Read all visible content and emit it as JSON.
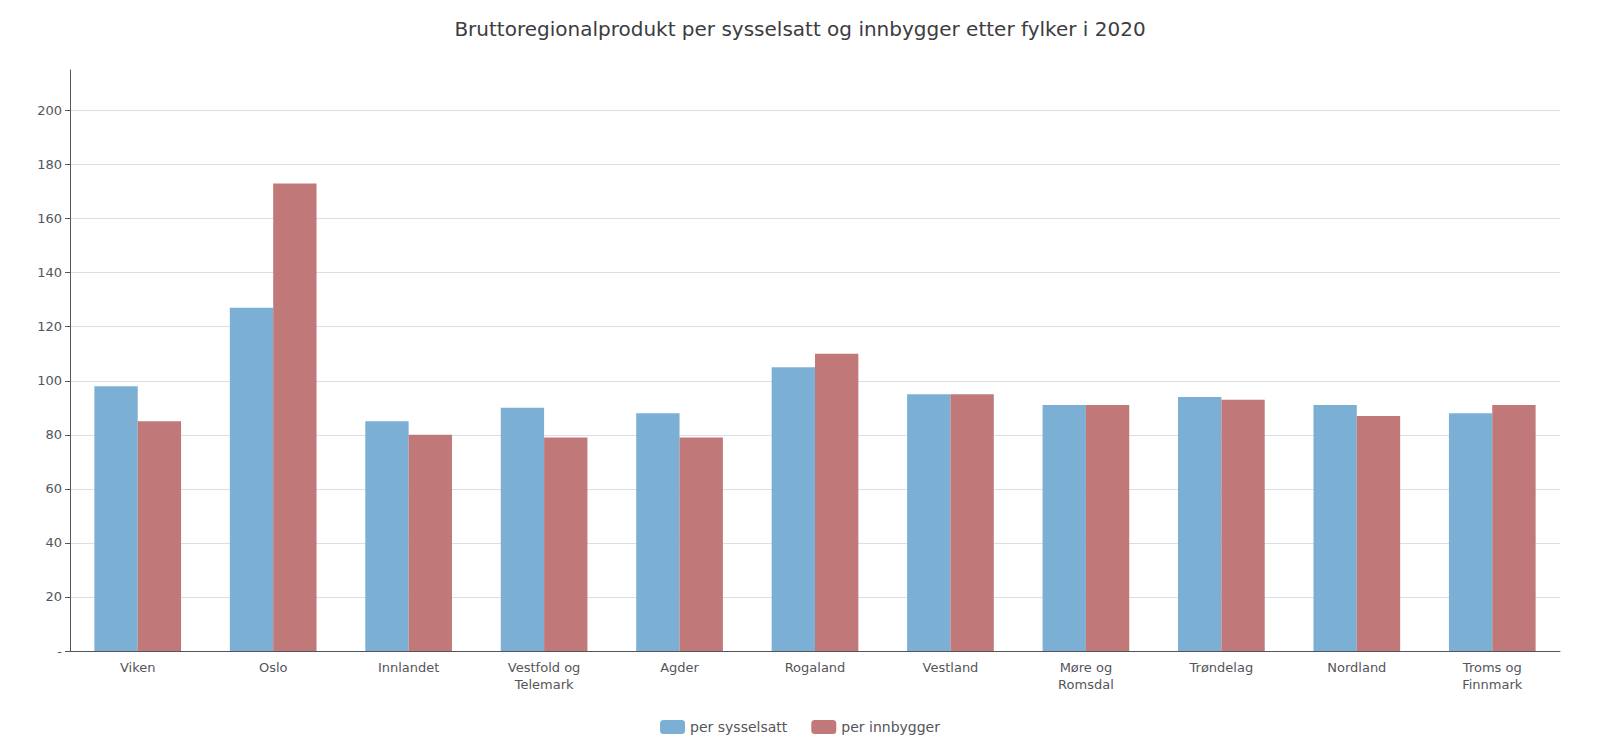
{
  "chart_data": {
    "type": "bar",
    "title": "Bruttoregionalprodukt per sysselsatt og innbygger etter fylker i 2020",
    "categories": [
      "Viken",
      "Oslo",
      "Innlandet",
      "Vestfold og\nTelemark",
      "Agder",
      "Rogaland",
      "Vestland",
      "Møre og\nRomsdal",
      "Trøndelag",
      "Nordland",
      "Troms og\nFinnmark"
    ],
    "series": [
      {
        "name": "per sysselsatt",
        "color": "#7BAFD4",
        "values": [
          98,
          127,
          85,
          90,
          88,
          105,
          95,
          91,
          94,
          91,
          88
        ]
      },
      {
        "name": "per innbygger",
        "color": "#C07878",
        "values": [
          85,
          173,
          80,
          79,
          79,
          110,
          95,
          91,
          93,
          87,
          91
        ]
      }
    ],
    "ylim": [
      0,
      215
    ],
    "yticks": [
      {
        "value": 0,
        "label": "-"
      },
      20,
      40,
      60,
      80,
      100,
      120,
      140,
      160,
      180,
      200
    ],
    "grid": true,
    "legend": "bottom"
  }
}
